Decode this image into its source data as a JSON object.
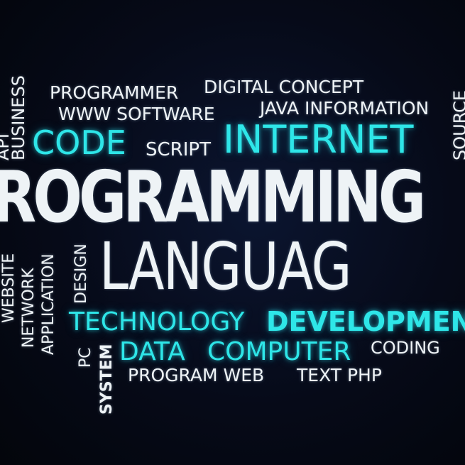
{
  "words": {
    "programmer": "PROGRAMMER",
    "digital_concept": "DIGITAL CONCEPT",
    "www_software": "WWW SOFTWARE",
    "java_information": "JAVA INFORMATION",
    "code": "CODE",
    "script": "SCRIPT",
    "internet": "INTERNET",
    "programming": "ROGRAMMING",
    "language": "LANGUAG",
    "technology": "TECHNOLOGY",
    "development": "DEVELOPMENT",
    "data": "DATA",
    "computer": "COMPUTER",
    "coding": "CODING",
    "program_web": "PROGRAM WEB",
    "text_php": "TEXT PHP",
    "business": "BUSINESS",
    "api": "API",
    "source": "SOURCE",
    "website": "WEBSITE",
    "network": "NETWORK",
    "application": "APPLICATION",
    "design": "DESIGN",
    "pc": "PC",
    "system": "SYSTEM"
  },
  "colors": {
    "accent_cyan": "#2ee6e8",
    "text_white": "#eef3f6",
    "background": "#05070f"
  }
}
